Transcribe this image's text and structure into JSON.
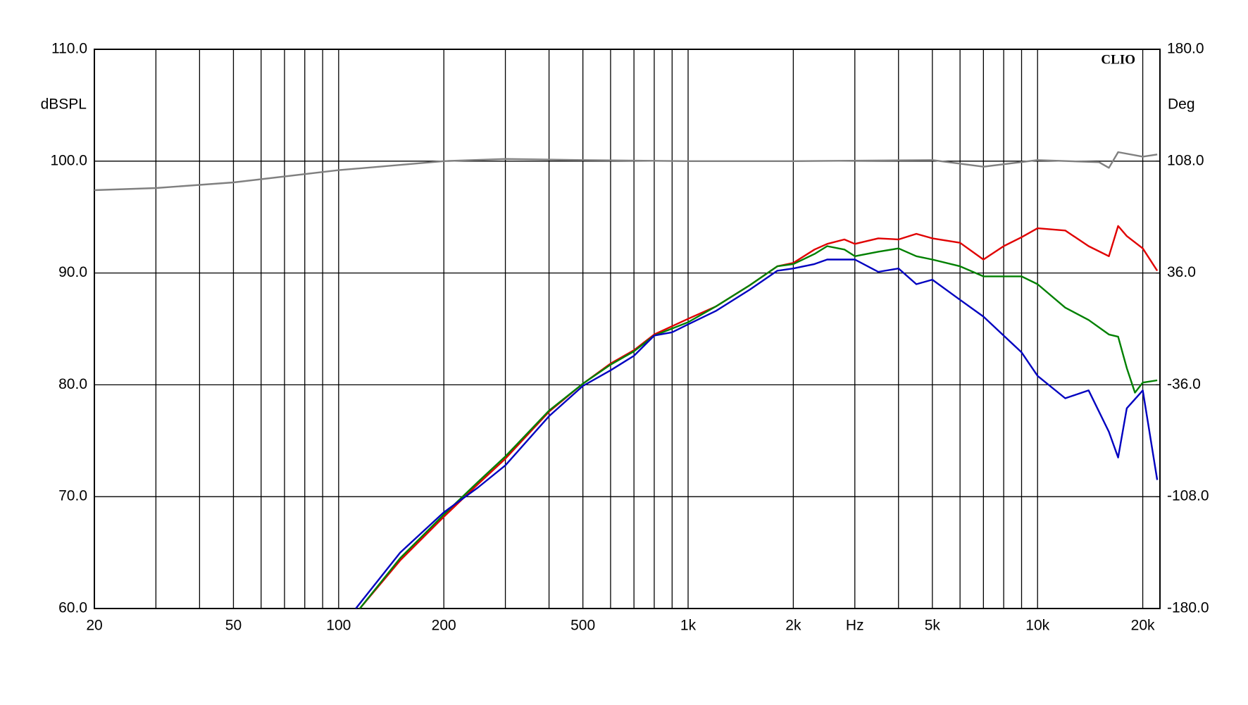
{
  "chart_data": {
    "type": "line",
    "logo": "CLIO",
    "ylabel": "dBSPL",
    "y2label": "Deg",
    "xlim": [
      20,
      22400
    ],
    "xlog": true,
    "xticks": [
      20,
      50,
      100,
      200,
      500,
      {
        "value": 1000,
        "label": "1k"
      },
      {
        "value": 2000,
        "label": "2k"
      },
      {
        "value": 3000,
        "label": "Hz"
      },
      {
        "value": 5000,
        "label": "5k"
      },
      {
        "value": 10000,
        "label": "10k"
      },
      {
        "value": 20000,
        "label": "20k"
      }
    ],
    "xminor": [
      30,
      40,
      60,
      70,
      80,
      90,
      300,
      400,
      600,
      700,
      800,
      900,
      4000,
      6000,
      7000,
      8000,
      9000
    ],
    "ylim": [
      60,
      110
    ],
    "yticks": [
      {
        "value": 60,
        "label": "60.0"
      },
      {
        "value": 70,
        "label": "70.0"
      },
      {
        "value": 80,
        "label": "80.0"
      },
      {
        "value": 90,
        "label": "90.0"
      },
      {
        "value": 100,
        "label": "100.0"
      },
      {
        "value": 110,
        "label": "110.0"
      }
    ],
    "y2lim": [
      -180,
      180
    ],
    "y2ticks": [
      {
        "value": -180,
        "label": "-180.0"
      },
      {
        "value": -108,
        "label": "-108.0"
      },
      {
        "value": -36,
        "label": "-36.0"
      },
      {
        "value": 36,
        "label": "36.0"
      },
      {
        "value": 108,
        "label": "108.0"
      },
      {
        "value": 180,
        "label": "180.0"
      }
    ],
    "grid": true,
    "series": [
      {
        "color": "#808080",
        "axis": "y2",
        "x": [
          20,
          30,
          50,
          100,
          200,
          300,
          500,
          1000,
          2000,
          5000,
          7000,
          10000,
          15000,
          16000,
          17000,
          20000,
          22000
        ],
        "values": [
          89.3,
          90.7,
          94.3,
          102.2,
          108,
          109.4,
          108.7,
          108,
          108,
          108.7,
          104.4,
          108.7,
          107.3,
          103.7,
          113.8,
          110.9,
          112.3
        ]
      },
      {
        "color": "#e00000",
        "x": [
          115,
          150,
          200,
          250,
          300,
          400,
          500,
          600,
          700,
          800,
          1000,
          1200,
          1500,
          1800,
          2000,
          2300,
          2500,
          2800,
          3000,
          3500,
          4000,
          4500,
          5000,
          6000,
          7000,
          8000,
          9000,
          10000,
          12000,
          14000,
          16000,
          17000,
          18000,
          20000,
          22000
        ],
        "values": [
          60,
          64.3,
          68.2,
          71.1,
          73.4,
          77.6,
          80.1,
          81.9,
          83.1,
          84.5,
          85.9,
          87.0,
          88.9,
          90.6,
          90.9,
          92.1,
          92.6,
          93.0,
          92.6,
          93.1,
          93.0,
          93.5,
          93.1,
          92.7,
          91.2,
          92.4,
          93.2,
          94.0,
          93.8,
          92.4,
          91.5,
          94.2,
          93.3,
          92.2,
          90.2
        ]
      },
      {
        "color": "#008000",
        "x": [
          115,
          150,
          200,
          250,
          300,
          400,
          500,
          600,
          700,
          800,
          1000,
          1200,
          1500,
          1800,
          2000,
          2300,
          2500,
          2800,
          3000,
          3500,
          4000,
          4500,
          5000,
          6000,
          7000,
          8000,
          9000,
          10000,
          12000,
          14000,
          16000,
          17000,
          18000,
          19000,
          20000,
          22000
        ],
        "values": [
          60,
          64.5,
          68.4,
          71.3,
          73.6,
          77.7,
          80.1,
          81.8,
          83.0,
          84.4,
          85.6,
          87.0,
          88.9,
          90.6,
          90.8,
          91.7,
          92.4,
          92.1,
          91.5,
          91.9,
          92.2,
          91.5,
          91.2,
          90.6,
          89.7,
          89.7,
          89.7,
          89.0,
          86.9,
          85.8,
          84.5,
          84.3,
          81.5,
          79.3,
          80.2,
          80.4
        ]
      },
      {
        "color": "#0000c0",
        "x": [
          112,
          150,
          200,
          250,
          300,
          400,
          500,
          600,
          700,
          800,
          900,
          1000,
          1200,
          1500,
          1800,
          2000,
          2300,
          2500,
          3000,
          3500,
          4000,
          4500,
          5000,
          6000,
          7000,
          8000,
          9000,
          10000,
          12000,
          14000,
          16000,
          17000,
          18000,
          20000,
          22000
        ],
        "values": [
          60,
          65.0,
          68.6,
          70.8,
          72.8,
          77.2,
          79.9,
          81.3,
          82.6,
          84.4,
          84.7,
          85.4,
          86.6,
          88.5,
          90.2,
          90.4,
          90.8,
          91.2,
          91.2,
          90.1,
          90.4,
          89.0,
          89.4,
          87.6,
          86.1,
          84.4,
          82.9,
          80.8,
          78.8,
          79.5,
          75.8,
          73.5,
          77.9,
          79.5,
          71.5
        ]
      }
    ]
  }
}
